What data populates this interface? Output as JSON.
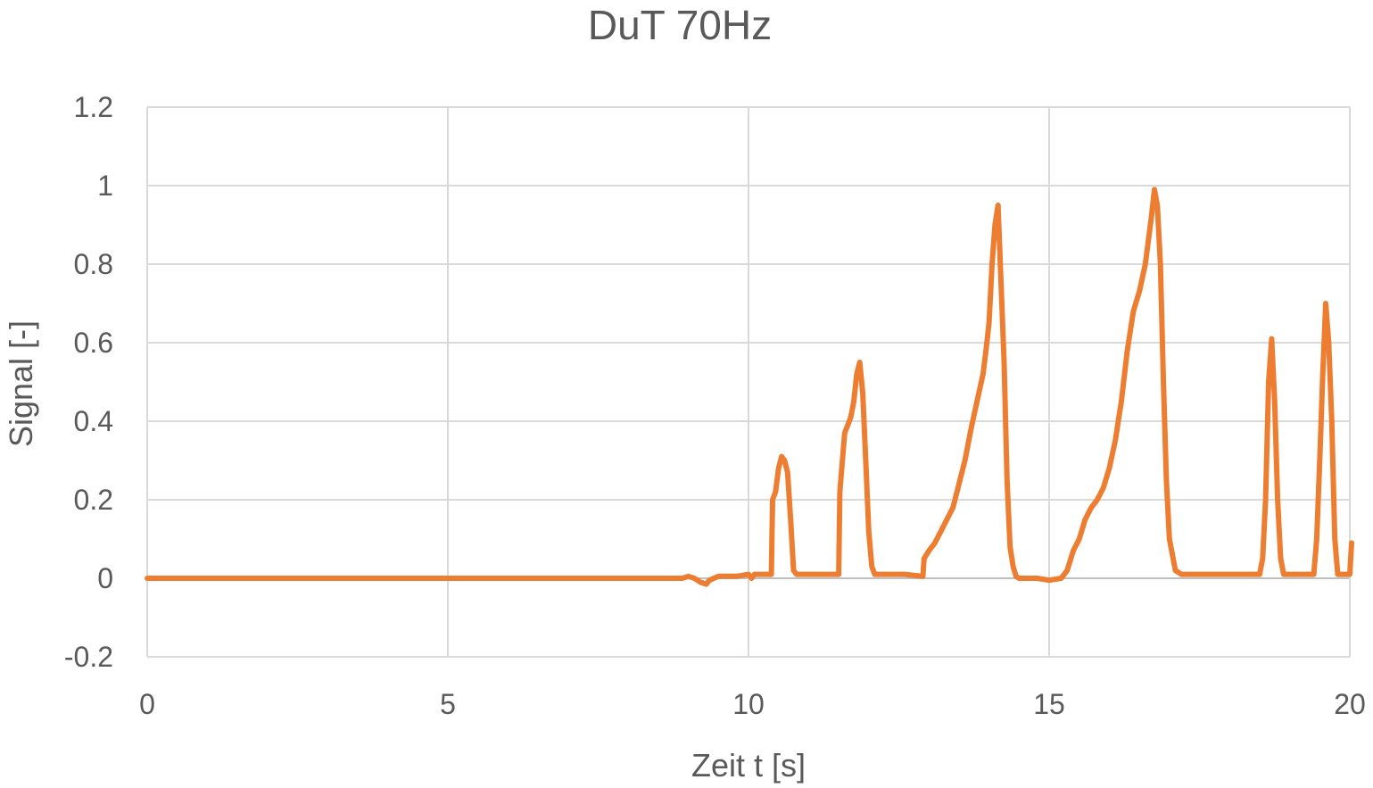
{
  "chart_data": {
    "type": "line",
    "title": "DuT 70Hz",
    "xlabel": "Zeit t [s]",
    "ylabel": "Signal [-]",
    "xlim": [
      0,
      20
    ],
    "ylim": [
      -0.2,
      1.2
    ],
    "xticks": [
      "0",
      "5",
      "10",
      "15",
      "20"
    ],
    "yticks": [
      "1.2",
      "1",
      "0.8",
      "0.6",
      "0.4",
      "0.2",
      "0",
      "-0.2"
    ],
    "grid": true,
    "legend": "none",
    "series": [
      {
        "color": "#ed7d31",
        "x": [
          0,
          1,
          2,
          3,
          4,
          5,
          6,
          7,
          8,
          8.9,
          9.0,
          9.1,
          9.2,
          9.3,
          9.35,
          9.5,
          9.6,
          9.8,
          10.0,
          10.05,
          10.1,
          10.3,
          10.38,
          10.4,
          10.45,
          10.5,
          10.55,
          10.6,
          10.65,
          10.7,
          10.75,
          10.8,
          10.85,
          11.0,
          11.2,
          11.5,
          11.52,
          11.55,
          11.6,
          11.65,
          11.7,
          11.75,
          11.8,
          11.85,
          11.9,
          11.95,
          12.0,
          12.05,
          12.1,
          12.3,
          12.6,
          12.9,
          12.92,
          13.0,
          13.1,
          13.2,
          13.3,
          13.4,
          13.5,
          13.6,
          13.7,
          13.8,
          13.9,
          13.95,
          14.0,
          14.05,
          14.1,
          14.15,
          14.2,
          14.25,
          14.3,
          14.35,
          14.4,
          14.45,
          14.5,
          14.6,
          14.8,
          15.0,
          15.2,
          15.3,
          15.4,
          15.5,
          15.6,
          15.7,
          15.8,
          15.9,
          16.0,
          16.1,
          16.2,
          16.3,
          16.4,
          16.5,
          16.6,
          16.65,
          16.7,
          16.75,
          16.8,
          16.85,
          16.9,
          16.95,
          17.0,
          17.1,
          17.2,
          17.3,
          17.5,
          18.0,
          18.5,
          18.55,
          18.6,
          18.65,
          18.7,
          18.75,
          18.8,
          18.85,
          18.9,
          19.0,
          19.2,
          19.4,
          19.45,
          19.5,
          19.55,
          19.6,
          19.65,
          19.7,
          19.75,
          19.8,
          19.9,
          20.0,
          20.03
        ],
        "y": [
          0,
          0,
          0,
          0,
          0,
          0,
          0,
          0,
          0,
          0,
          0.005,
          0,
          -0.01,
          -0.015,
          -0.005,
          0.005,
          0.005,
          0.005,
          0.01,
          0,
          0.01,
          0.01,
          0.01,
          0.2,
          0.22,
          0.28,
          0.31,
          0.3,
          0.27,
          0.15,
          0.02,
          0.01,
          0.01,
          0.01,
          0.01,
          0.01,
          0.22,
          0.28,
          0.37,
          0.39,
          0.41,
          0.45,
          0.52,
          0.55,
          0.47,
          0.3,
          0.12,
          0.03,
          0.01,
          0.01,
          0.01,
          0.005,
          0.05,
          0.07,
          0.09,
          0.12,
          0.15,
          0.18,
          0.24,
          0.3,
          0.38,
          0.45,
          0.52,
          0.58,
          0.65,
          0.8,
          0.9,
          0.95,
          0.75,
          0.55,
          0.25,
          0.08,
          0.03,
          0.005,
          0,
          0,
          0,
          -0.005,
          0,
          0.02,
          0.07,
          0.1,
          0.15,
          0.18,
          0.2,
          0.23,
          0.28,
          0.35,
          0.45,
          0.58,
          0.68,
          0.73,
          0.8,
          0.86,
          0.92,
          0.99,
          0.95,
          0.8,
          0.5,
          0.25,
          0.1,
          0.02,
          0.01,
          0.01,
          0.01,
          0.01,
          0.01,
          0.05,
          0.2,
          0.5,
          0.61,
          0.45,
          0.2,
          0.05,
          0.01,
          0.01,
          0.01,
          0.01,
          0.1,
          0.3,
          0.52,
          0.7,
          0.6,
          0.4,
          0.1,
          0.01,
          0.01,
          0.01,
          0.09
        ]
      }
    ]
  }
}
